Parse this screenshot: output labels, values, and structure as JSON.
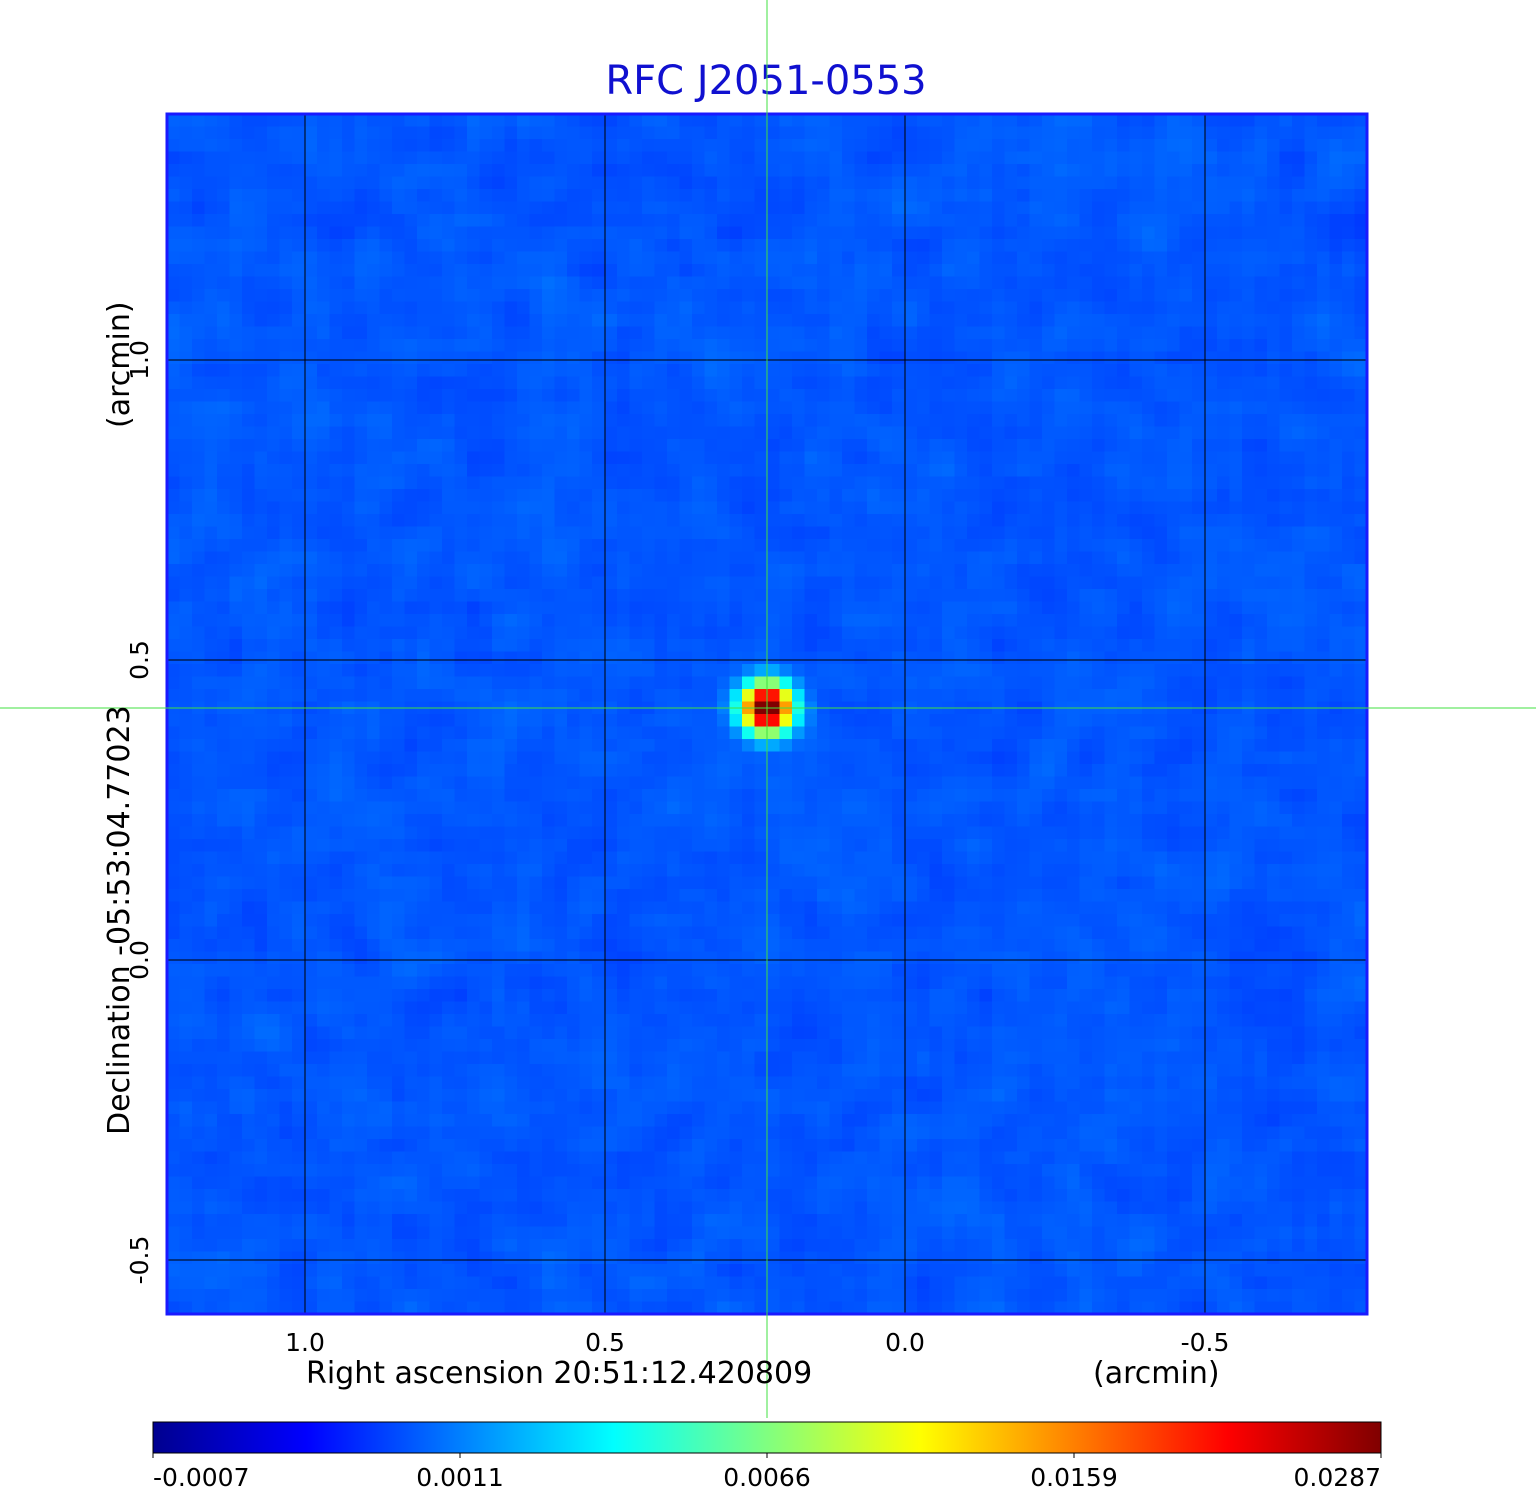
{
  "chart_data": {
    "type": "heatmap",
    "title": "RFC J2051-0553",
    "title_color": "#1010d0",
    "xlabel": "Right ascension  20:51:12.420809",
    "xunit": "(arcmin)",
    "ylabel": "Declination  -05:53:04.77023",
    "yunit": "(arcmin)",
    "xlim": [
      1.23,
      -0.77
    ],
    "ylim": [
      -0.59,
      1.41
    ],
    "x_ticks": [
      1.0,
      0.5,
      0.0,
      -0.5
    ],
    "x_tick_labels": [
      "1.0",
      "0.5",
      "0.0",
      "-0.5"
    ],
    "y_ticks": [
      1.0,
      0.5,
      0.0,
      -0.5
    ],
    "y_tick_labels": [
      "1.0",
      "0.5",
      "0.0",
      "-0.5"
    ],
    "grid": true,
    "crosshair": {
      "x": 0.23,
      "y": 0.42,
      "color": "#40e040"
    },
    "source": {
      "x": 0.23,
      "y": 0.42,
      "peak": 0.0287
    },
    "background_level": 0.0002,
    "colormap": "jet",
    "colorbar": {
      "min": -0.0007,
      "max": 0.0287,
      "tick_labels": [
        "-0.0007",
        "0.0011",
        "0.0066",
        "0.0159",
        "0.0287"
      ]
    }
  }
}
